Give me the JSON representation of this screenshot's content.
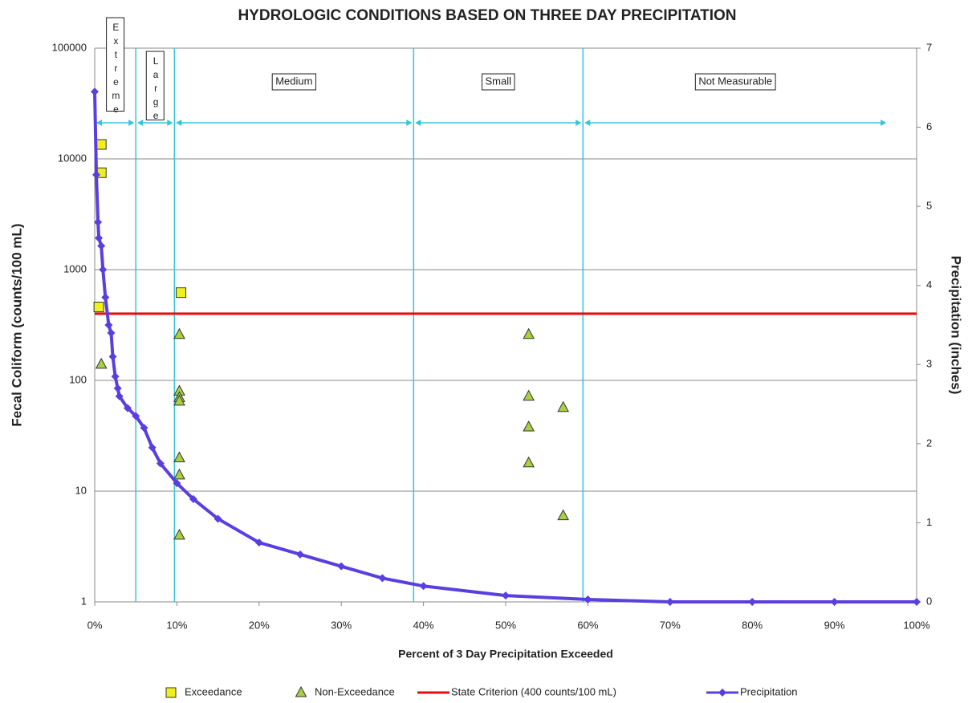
{
  "chart_data": {
    "type": "scatter",
    "title": "HYDROLOGIC CONDITIONS BASED ON THREE DAY PRECIPITATION",
    "xlabel": "Percent of 3 Day Precipitation Exceeded",
    "ylabel": "Fecal Coliform (counts/100 mL)",
    "y2label": "Precipitation (inches)",
    "xlim": [
      0,
      100
    ],
    "xticks": [
      {
        "value": 0,
        "label": "0%"
      },
      {
        "value": 10,
        "label": "10%"
      },
      {
        "value": 20,
        "label": "20%"
      },
      {
        "value": 30,
        "label": "30%"
      },
      {
        "value": 40,
        "label": "40%"
      },
      {
        "value": 50,
        "label": "50%"
      },
      {
        "value": 60,
        "label": "60%"
      },
      {
        "value": 70,
        "label": "70%"
      },
      {
        "value": 80,
        "label": "80%"
      },
      {
        "value": 90,
        "label": "90%"
      },
      {
        "value": 100,
        "label": "100%"
      }
    ],
    "yscale": "log",
    "ylim": [
      1,
      100000
    ],
    "yticks": [
      1,
      10,
      100,
      1000,
      10000,
      100000
    ],
    "y2lim": [
      0,
      7
    ],
    "y2ticks": [
      0,
      1,
      2,
      3,
      4,
      5,
      6,
      7
    ],
    "grid": true,
    "legend": "bottom",
    "zones": [
      {
        "label": "Extreme",
        "from": 0,
        "to": 5
      },
      {
        "label": "Large",
        "from": 5,
        "to": 9.7
      },
      {
        "label": "Medium",
        "from": 9.7,
        "to": 38.8
      },
      {
        "label": "Small",
        "from": 38.8,
        "to": 59.4
      },
      {
        "label": "Not Measurable",
        "from": 59.4,
        "to": 96.5
      }
    ],
    "zone_color": "#33c6d8",
    "series": [
      {
        "name": "Exceedance",
        "marker": "square",
        "color": "#f0f020",
        "x": [
          0.8,
          0.8,
          0.5,
          10.5
        ],
        "values": [
          13500,
          7500,
          460,
          620
        ]
      },
      {
        "name": "Non-Exceedance",
        "marker": "triangle",
        "color": "#a8d040",
        "x": [
          0.8,
          10.3,
          10.3,
          10.3,
          10.3,
          10.3,
          10.3,
          10.3,
          52.8,
          52.8,
          52.8,
          52.8,
          57,
          57
        ],
        "values": [
          140,
          260,
          80,
          70,
          65,
          20,
          14,
          4,
          260,
          72,
          38,
          18,
          57,
          6
        ]
      },
      {
        "name": "State Criterion (400 counts/100 mL)",
        "marker": "line",
        "color": "#e01010",
        "x": [
          0,
          100
        ],
        "values": [
          400,
          400
        ]
      },
      {
        "name": "Precipitation",
        "marker": "diamond",
        "color": "#5a3ee0",
        "axis": "y2",
        "x": [
          0,
          0.2,
          0.4,
          0.5,
          0.8,
          1,
          1.3,
          1.7,
          2,
          2.2,
          2.5,
          2.8,
          3,
          4,
          5,
          6,
          7,
          8,
          10,
          12,
          15,
          20,
          25,
          30,
          35,
          40,
          50,
          60,
          70,
          80,
          90,
          100
        ],
        "values": [
          6.45,
          5.4,
          4.8,
          4.6,
          4.5,
          4.2,
          3.85,
          3.5,
          3.4,
          3.1,
          2.85,
          2.7,
          2.6,
          2.45,
          2.35,
          2.2,
          1.95,
          1.75,
          1.5,
          1.3,
          1.05,
          0.75,
          0.6,
          0.45,
          0.3,
          0.2,
          0.08,
          0.03,
          0,
          0,
          0,
          0
        ]
      }
    ]
  }
}
